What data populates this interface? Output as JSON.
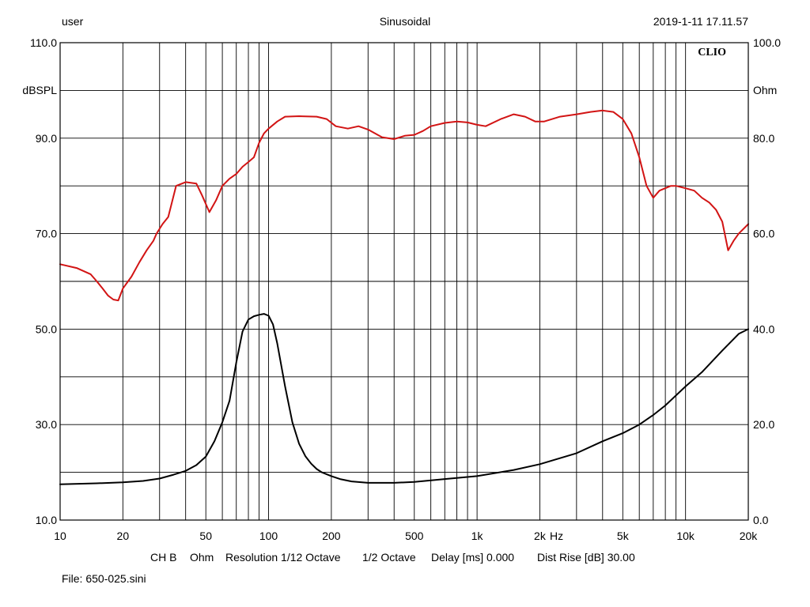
{
  "header": {
    "left": "user",
    "center": "Sinusoidal",
    "right": "2019-1-11 17.11.57"
  },
  "brand": "CLIO",
  "footer": {
    "ch": "CH B",
    "unit": "Ohm",
    "resolution": "Resolution 1/12 Octave",
    "octave": "1/2 Octave",
    "delay": "Delay [ms] 0.000",
    "dist_rise": "Dist Rise [dB] 30.00",
    "file": "File: 650-025.sini"
  },
  "colors": {
    "spl": "#d21414",
    "impedance": "#000000",
    "grid": "#000000"
  },
  "chart_data": {
    "type": "line",
    "x_scale": "log",
    "xlim": [
      10,
      20000
    ],
    "grid": true,
    "ylabel_left": "dBSPL",
    "ylabel_right": "Ohm",
    "xlabel": "Hz",
    "ylim_left": [
      10,
      110
    ],
    "ylim_right": [
      0,
      100
    ],
    "left_ticks": [
      {
        "v": 110,
        "t": "110.0"
      },
      {
        "v": 90,
        "t": "90.0"
      },
      {
        "v": 70,
        "t": "70.0"
      },
      {
        "v": 50,
        "t": "50.0"
      },
      {
        "v": 30,
        "t": "30.0"
      },
      {
        "v": 10,
        "t": "10.0"
      }
    ],
    "right_ticks": [
      {
        "v": 100,
        "t": "100.0"
      },
      {
        "v": 80,
        "t": "80.0"
      },
      {
        "v": 60,
        "t": "60.0"
      },
      {
        "v": 40,
        "t": "40.0"
      },
      {
        "v": 20,
        "t": "20.0"
      },
      {
        "v": 0,
        "t": "0.0"
      }
    ],
    "x_ticks": [
      {
        "v": 10,
        "t": "10"
      },
      {
        "v": 20,
        "t": "20"
      },
      {
        "v": 50,
        "t": "50"
      },
      {
        "v": 100,
        "t": "100"
      },
      {
        "v": 200,
        "t": "200"
      },
      {
        "v": 500,
        "t": "500"
      },
      {
        "v": 1000,
        "t": "1k"
      },
      {
        "v": 2000,
        "t": "2k"
      },
      {
        "v": 5000,
        "t": "5k"
      },
      {
        "v": 10000,
        "t": "10k"
      },
      {
        "v": 20000,
        "t": "20k"
      }
    ],
    "series": [
      {
        "key": "spl",
        "axis": "left",
        "x": [
          10,
          12,
          14,
          15,
          16,
          17,
          18,
          19,
          20,
          22,
          24,
          26,
          28,
          29,
          31,
          33,
          36,
          40,
          45,
          48,
          52,
          56,
          60,
          65,
          70,
          75,
          80,
          85,
          90,
          95,
          100,
          110,
          120,
          140,
          170,
          190,
          210,
          240,
          270,
          300,
          350,
          400,
          450,
          500,
          550,
          600,
          700,
          800,
          900,
          1000,
          1100,
          1300,
          1500,
          1700,
          1900,
          2100,
          2500,
          3000,
          3500,
          4000,
          4500,
          5000,
          5500,
          6000,
          6500,
          7000,
          7500,
          8500,
          9000,
          10000,
          11000,
          12000,
          13000,
          14000,
          15000,
          16000,
          17000,
          18000,
          20000
        ],
        "y": [
          63.6,
          62.8,
          61.5,
          60.0,
          58.5,
          57.0,
          56.2,
          56.0,
          58.5,
          61.0,
          64.0,
          66.5,
          68.5,
          70.0,
          72.0,
          73.5,
          80.0,
          80.8,
          80.5,
          78.0,
          74.5,
          77.0,
          80.0,
          81.5,
          82.5,
          84.0,
          85.0,
          86.0,
          89.0,
          91.0,
          92.0,
          93.5,
          94.5,
          94.6,
          94.5,
          94.0,
          92.5,
          92.0,
          92.5,
          91.8,
          90.2,
          89.8,
          90.5,
          90.7,
          91.5,
          92.5,
          93.2,
          93.5,
          93.3,
          92.8,
          92.5,
          94.0,
          95.0,
          94.5,
          93.5,
          93.5,
          94.5,
          95.0,
          95.5,
          95.8,
          95.5,
          94.0,
          91.0,
          86.0,
          80.0,
          77.5,
          79.0,
          80.0,
          80.0,
          79.5,
          79.0,
          77.5,
          76.5,
          75.0,
          72.5,
          66.5,
          68.5,
          70.0,
          72.0
        ]
      },
      {
        "key": "impedance",
        "axis": "right",
        "x": [
          10,
          15,
          20,
          25,
          30,
          35,
          40,
          45,
          50,
          55,
          60,
          65,
          70,
          75,
          80,
          85,
          90,
          95,
          100,
          105,
          110,
          120,
          130,
          140,
          150,
          160,
          170,
          180,
          200,
          220,
          250,
          300,
          400,
          500,
          700,
          1000,
          1500,
          2000,
          3000,
          4000,
          5000,
          6000,
          7000,
          8000,
          10000,
          12000,
          15000,
          18000,
          20000
        ],
        "y": [
          7.5,
          7.7,
          7.9,
          8.2,
          8.7,
          9.5,
          10.3,
          11.5,
          13.3,
          16.5,
          20.5,
          25.0,
          33.0,
          39.5,
          42.0,
          42.7,
          43.0,
          43.2,
          42.8,
          41.0,
          37.0,
          28.0,
          20.5,
          16.0,
          13.4,
          11.8,
          10.7,
          10.0,
          9.2,
          8.6,
          8.1,
          7.8,
          7.8,
          8.0,
          8.6,
          9.2,
          10.5,
          11.7,
          14.0,
          16.5,
          18.2,
          20.0,
          22.0,
          24.0,
          28.0,
          31.0,
          35.5,
          39.0,
          40.0
        ]
      }
    ]
  }
}
